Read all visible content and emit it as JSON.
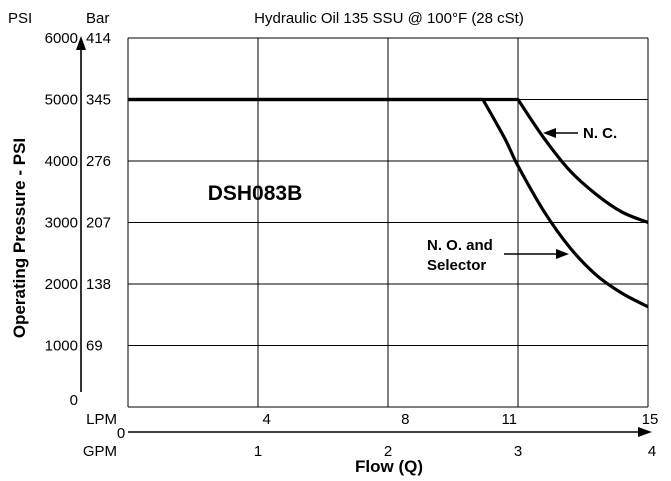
{
  "chart_data": {
    "type": "line",
    "title": "Hydraulic Oil 135 SSU @ 100°F (28 cSt)",
    "model_label": "DSH083B",
    "ylabel": "Operating Pressure - PSI",
    "xlabel": "Flow (Q)",
    "y_axis_psi": {
      "header": "PSI",
      "range": [
        0,
        6000
      ],
      "ticks": [
        0,
        1000,
        2000,
        3000,
        4000,
        5000,
        6000
      ],
      "tick_labels": [
        "0",
        "1000",
        "2000",
        "3000",
        "4000",
        "5000",
        "6000"
      ]
    },
    "y_axis_bar": {
      "header": "Bar",
      "ticks": [
        69,
        138,
        207,
        276,
        345,
        414
      ],
      "tick_labels": [
        "69",
        "138",
        "207",
        "276",
        "345",
        "414"
      ]
    },
    "x_axis_lpm": {
      "header": "LPM",
      "range": [
        0,
        15
      ],
      "ticks": [
        4,
        8,
        11,
        15
      ],
      "tick_labels": [
        "4",
        "8",
        "11",
        "15"
      ]
    },
    "x_axis_gpm": {
      "header": "GPM",
      "range": [
        0,
        4
      ],
      "ticks": [
        0,
        1,
        2,
        3,
        4
      ],
      "tick_labels": [
        "0",
        "1",
        "2",
        "3",
        "4"
      ]
    },
    "grid_gpm_lines": [
      1,
      2,
      3,
      4
    ],
    "grid_psi_lines": [
      1000,
      2000,
      3000,
      4000,
      5000,
      6000
    ],
    "series": [
      {
        "name": "N. C.",
        "x_gpm": [
          0,
          3.0,
          3.2,
          3.4,
          3.6,
          3.8,
          4.0
        ],
        "y_psi": [
          5000,
          5000,
          4370,
          3840,
          3460,
          3170,
          3000
        ]
      },
      {
        "name": "N. O. and Selector",
        "x_gpm": [
          0,
          2.73,
          2.9,
          3.0,
          3.2,
          3.4,
          3.6,
          3.8,
          4.0
        ],
        "y_psi": [
          5000,
          5000,
          4360,
          3920,
          3180,
          2590,
          2150,
          1850,
          1630
        ]
      }
    ],
    "annotations": [
      {
        "text": "N. C.",
        "target_series": 0
      },
      {
        "text_lines": [
          "N. O. and",
          "Selector"
        ],
        "target_series": 1
      }
    ],
    "grid": true,
    "legend": "none"
  }
}
